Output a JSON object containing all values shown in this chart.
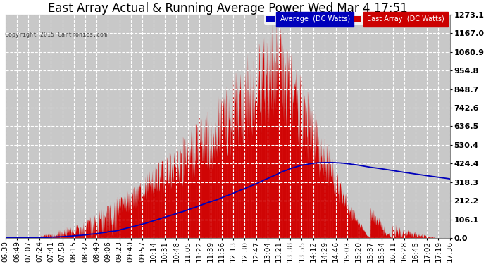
{
  "title": "East Array Actual & Running Average Power Wed Mar 4 17:51",
  "copyright": "Copyright 2015 Cartronics.com",
  "legend_labels": [
    "Average  (DC Watts)",
    "East Array  (DC Watts)"
  ],
  "legend_colors": [
    "#0000bb",
    "#cc0000"
  ],
  "yticks": [
    0.0,
    106.1,
    212.2,
    318.3,
    424.4,
    530.4,
    636.5,
    742.6,
    848.7,
    954.8,
    1060.9,
    1167.0,
    1273.1
  ],
  "xtick_labels": [
    "06:30",
    "06:49",
    "07:07",
    "07:24",
    "07:41",
    "07:58",
    "08:15",
    "08:32",
    "08:49",
    "09:06",
    "09:23",
    "09:40",
    "09:57",
    "10:14",
    "10:31",
    "10:48",
    "11:05",
    "11:22",
    "11:39",
    "11:56",
    "12:13",
    "12:30",
    "12:47",
    "13:04",
    "13:21",
    "13:38",
    "13:55",
    "14:12",
    "14:29",
    "14:46",
    "15:03",
    "15:20",
    "15:37",
    "15:54",
    "16:11",
    "16:28",
    "16:45",
    "17:02",
    "17:19",
    "17:36"
  ],
  "ymax": 1273.1,
  "ymin": 0.0,
  "background_color": "#ffffff",
  "plot_background": "#c8c8c8",
  "grid_color": "#ffffff",
  "fill_color": "#cc0000",
  "line_color": "#0000bb",
  "title_fontsize": 12,
  "tick_fontsize": 8,
  "title_color": "#000000",
  "n_xticks": 40
}
